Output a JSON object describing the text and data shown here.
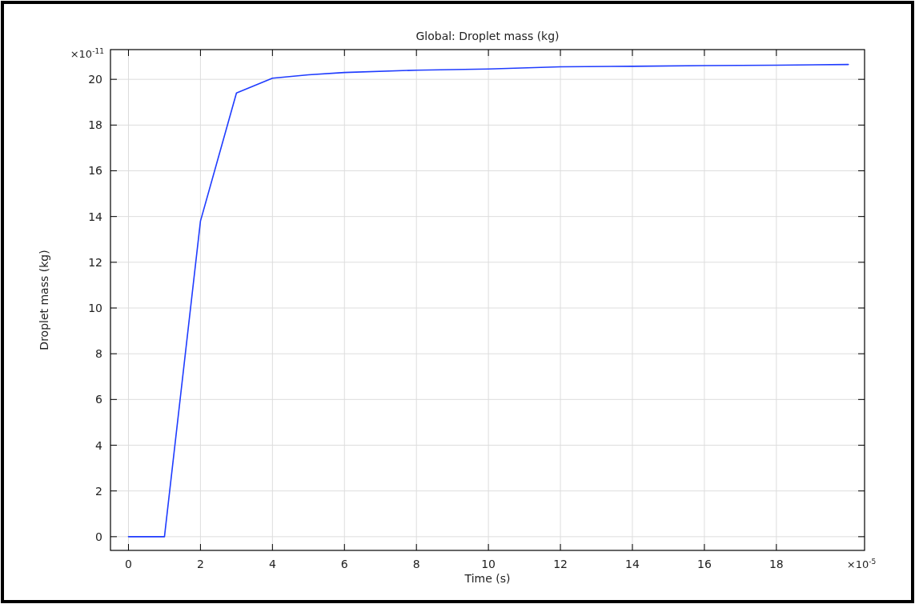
{
  "chart_data": {
    "type": "line",
    "title": "Global: Droplet mass (kg)",
    "xlabel": "Time (s)",
    "ylabel": "Droplet mass (kg)",
    "annotations": [
      "×10$^{-5}$",
      "×10$^{-11}$"
    ],
    "x": [
      0,
      1,
      2,
      3,
      4,
      5,
      6,
      8,
      10,
      12,
      14,
      16,
      18,
      20
    ],
    "series": [
      {
        "color": "#1f3cff",
        "values": [
          0,
          0,
          13.8,
          19.4,
          20.05,
          20.2,
          20.3,
          20.4,
          20.45,
          20.55,
          20.57,
          20.6,
          20.62,
          20.65
        ]
      }
    ],
    "xlim": [
      -0.5,
      20.45
    ],
    "ylim": [
      -0.6,
      21.3
    ],
    "xticks": [
      0,
      2,
      4,
      6,
      8,
      10,
      12,
      14,
      16,
      18
    ],
    "yticks": [
      0,
      2,
      4,
      6,
      8,
      10,
      12,
      14,
      16,
      18,
      20
    ],
    "grid": true,
    "marker": "none",
    "line_style": "solid"
  }
}
